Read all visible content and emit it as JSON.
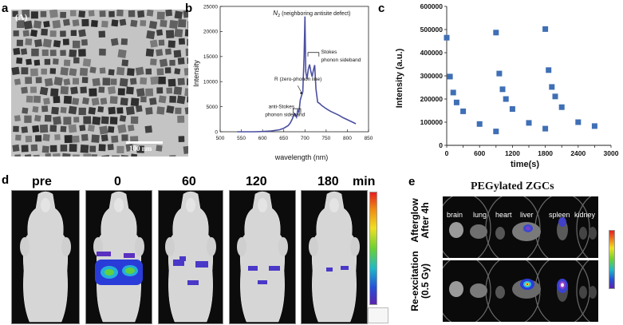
{
  "panels": {
    "a": {
      "letter": "a",
      "inset_letter": "(A)",
      "scalebar": "100 nm"
    },
    "b": {
      "letter": "b"
    },
    "c": {
      "letter": "c"
    },
    "d": {
      "letter": "d",
      "timepoints": [
        "pre",
        "0",
        "60",
        "120",
        "180"
      ],
      "unit": "min"
    },
    "e": {
      "letter": "e",
      "title": "PEGylated ZGCs",
      "organs": [
        "brain",
        "lung",
        "heart",
        "liver",
        "spleen",
        "kidney"
      ],
      "row1_label_line1": "Afterglow",
      "row1_label_line2": "After 4h",
      "row2_label_line1": "Re-excitation",
      "row2_label_line2": "(0.5 Gy)"
    }
  },
  "chart_data": [
    {
      "type": "line",
      "panel": "b",
      "xlabel": "wavelength (nm)",
      "ylabel": "Intensity",
      "xlim": [
        500,
        850
      ],
      "ylim": [
        0,
        25000
      ],
      "xticks": [
        500,
        550,
        600,
        650,
        700,
        750,
        800,
        850
      ],
      "yticks": [
        0,
        5000,
        10000,
        15000,
        20000,
        25000
      ],
      "series_color": "#4a4fa0",
      "x": [
        540,
        560,
        580,
        600,
        620,
        640,
        650,
        660,
        665,
        670,
        675,
        680,
        683,
        686,
        689,
        692,
        695,
        698,
        700,
        702,
        705,
        708,
        711,
        714,
        717,
        720,
        723,
        726,
        730,
        735,
        740,
        750,
        760,
        770,
        780,
        790,
        800,
        810,
        820
      ],
      "y": [
        0,
        0,
        0,
        50,
        150,
        400,
        700,
        1200,
        1700,
        2500,
        3600,
        2900,
        4300,
        3900,
        6300,
        7200,
        8000,
        15000,
        23000,
        12000,
        10500,
        12500,
        13400,
        12000,
        11000,
        12300,
        13300,
        8500,
        5900,
        5600,
        5200,
        4600,
        4100,
        3700,
        3300,
        2800,
        2400,
        2000,
        1600
      ],
      "annotations": [
        {
          "text": "N",
          "sub": "2",
          "rest": " (neighboring antisite defect)"
        },
        {
          "text": "R (zero-phonon line)"
        },
        {
          "text": "Stokes",
          "text2": "phonon sideband"
        },
        {
          "text": "anti-Stokes",
          "text2": "phonon sideband"
        }
      ]
    },
    {
      "type": "scatter",
      "panel": "c",
      "xlabel": "time(s)",
      "ylabel": "Intensity (a.u.)",
      "xlim": [
        0,
        3000
      ],
      "ylim": [
        0,
        600000
      ],
      "xticks": [
        0,
        300,
        600,
        900,
        1200,
        1500,
        1800,
        2100,
        2400,
        2700,
        3000
      ],
      "yticks": [
        0,
        100000,
        200000,
        300000,
        400000,
        500000,
        600000
      ],
      "marker_color": "#3f6fb5",
      "points": [
        [
          0,
          465000
        ],
        [
          60,
          297000
        ],
        [
          120,
          228000
        ],
        [
          180,
          185000
        ],
        [
          300,
          147000
        ],
        [
          600,
          92000
        ],
        [
          900,
          60000
        ],
        [
          900,
          487000
        ],
        [
          960,
          310000
        ],
        [
          1020,
          242000
        ],
        [
          1080,
          200000
        ],
        [
          1200,
          157000
        ],
        [
          1500,
          97000
        ],
        [
          1800,
          72000
        ],
        [
          1800,
          502000
        ],
        [
          1860,
          325000
        ],
        [
          1920,
          252000
        ],
        [
          1980,
          211000
        ],
        [
          2100,
          165000
        ],
        [
          2400,
          100000
        ],
        [
          2700,
          83000
        ]
      ]
    }
  ]
}
